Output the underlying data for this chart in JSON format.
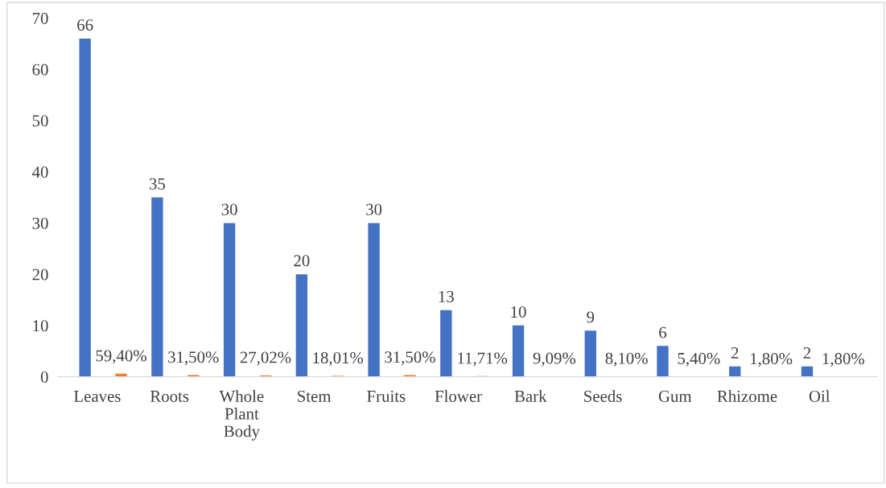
{
  "chart_data": {
    "type": "bar",
    "categories": [
      "Leaves",
      "Roots",
      "Whole Plant Body",
      "Stem",
      "Fruits",
      "Flower",
      "Bark",
      "Seeds",
      "Gum",
      "Rhizome",
      "Oil"
    ],
    "series": [
      {
        "color": "#4472c4",
        "values": [
          66,
          35,
          30,
          20,
          30,
          13,
          10,
          9,
          6,
          2,
          2
        ],
        "value_labels": [
          "66",
          "35",
          "30",
          "20",
          "30",
          "13",
          "10",
          "9",
          "6",
          "2",
          "2"
        ]
      },
      {
        "color": "#ed7d31",
        "values": [
          0.594,
          0.315,
          0.2702,
          0.1801,
          0.315,
          0.1171,
          0.0909,
          0.081,
          0.054,
          0.018,
          0.018
        ],
        "value_labels": [
          "59,40%",
          "31,50%",
          "27,02%",
          "18,01%",
          "31,50%",
          "11,71%",
          "9,09%",
          "8,10%",
          "5,40%",
          "1,80%",
          "1,80%"
        ]
      }
    ],
    "ylim": [
      0,
      70
    ],
    "yticks": [
      0,
      10,
      20,
      30,
      40,
      50,
      60,
      70
    ],
    "grid": false,
    "legend": false
  }
}
